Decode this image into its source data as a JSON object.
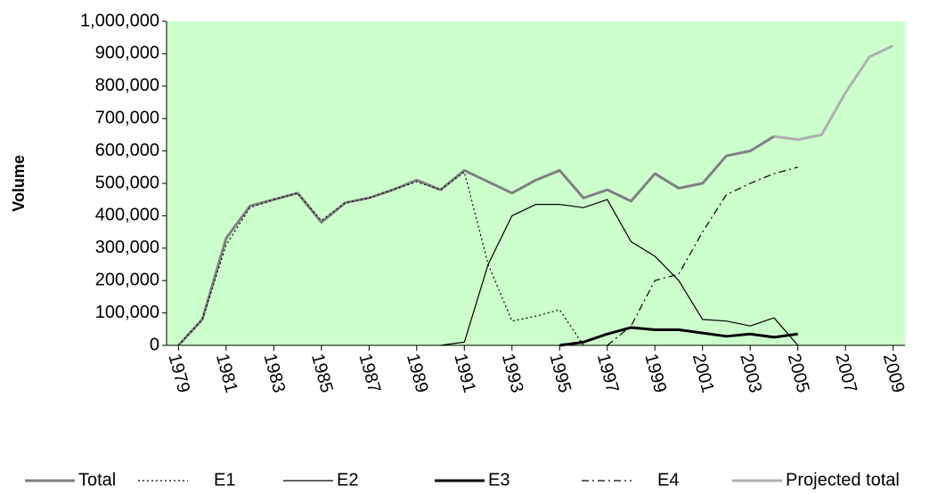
{
  "chart_data": {
    "type": "line",
    "ylabel": "Volume",
    "x": [
      1979,
      1980,
      1981,
      1982,
      1983,
      1984,
      1985,
      1986,
      1987,
      1988,
      1989,
      1990,
      1991,
      1992,
      1993,
      1994,
      1995,
      1996,
      1997,
      1998,
      1999,
      2000,
      2001,
      2002,
      2003,
      2004,
      2005,
      2006,
      2007,
      2008,
      2009
    ],
    "xlim": [
      1978.5,
      2009.5
    ],
    "xticks": [
      1979,
      1981,
      1983,
      1985,
      1987,
      1989,
      1991,
      1993,
      1995,
      1997,
      1999,
      2001,
      2003,
      2005,
      2007,
      2009
    ],
    "ylim": [
      0,
      1000000
    ],
    "yticks": [
      0,
      {
        "value": 100000,
        "label": "100,000"
      },
      {
        "value": 200000,
        "label": "200,000"
      },
      {
        "value": 300000,
        "label": "300,000"
      },
      {
        "value": 400000,
        "label": "400,000"
      },
      {
        "value": 500000,
        "label": "500,000"
      },
      {
        "value": 600000,
        "label": "600,000"
      },
      {
        "value": 700000,
        "label": "700,000"
      },
      {
        "value": 800000,
        "label": "800,000"
      },
      {
        "value": 900000,
        "label": "900,000"
      },
      {
        "value": 1000000,
        "label": "1,000,000"
      }
    ],
    "background": "#ccffcc",
    "legend": "bottom",
    "series": [
      {
        "name": "Total",
        "color": "#808080",
        "line_width": 3,
        "dash": "none",
        "values": [
          0,
          80000,
          330000,
          430000,
          450000,
          470000,
          380000,
          440000,
          455000,
          480000,
          510000,
          480000,
          540000,
          505000,
          470000,
          510000,
          540000,
          455000,
          480000,
          445000,
          530000,
          485000,
          500000,
          585000,
          600000,
          645000,
          null,
          null,
          null,
          null,
          null
        ]
      },
      {
        "name": "E1",
        "color": "#000000",
        "line_width": 1.2,
        "dash": "2,3",
        "values": [
          0,
          80000,
          310000,
          425000,
          450000,
          470000,
          385000,
          440000,
          455000,
          480000,
          505000,
          480000,
          535000,
          250000,
          75000,
          90000,
          110000,
          0,
          null,
          null,
          null,
          null,
          null,
          null,
          null,
          null,
          null,
          null,
          null,
          null,
          null
        ]
      },
      {
        "name": "E2",
        "color": "#000000",
        "line_width": 1.2,
        "dash": "none",
        "values": [
          null,
          null,
          null,
          null,
          null,
          null,
          null,
          null,
          null,
          null,
          null,
          0,
          10000,
          250000,
          400000,
          435000,
          435000,
          425000,
          450000,
          320000,
          275000,
          200000,
          80000,
          75000,
          60000,
          85000,
          0,
          null,
          null,
          null,
          null
        ]
      },
      {
        "name": "E3",
        "color": "#000000",
        "line_width": 3,
        "dash": "none",
        "values": [
          null,
          null,
          null,
          null,
          null,
          null,
          null,
          null,
          null,
          null,
          null,
          null,
          null,
          null,
          null,
          null,
          0,
          10000,
          35000,
          55000,
          48000,
          48000,
          38000,
          28000,
          35000,
          25000,
          35000,
          null,
          null,
          null,
          null
        ]
      },
      {
        "name": "E4",
        "color": "#000000",
        "line_width": 1.2,
        "dash": "8,4,2,4",
        "values": [
          null,
          null,
          null,
          null,
          null,
          null,
          null,
          null,
          null,
          null,
          null,
          null,
          null,
          null,
          null,
          null,
          null,
          null,
          0,
          60000,
          200000,
          220000,
          350000,
          465000,
          500000,
          530000,
          550000,
          null,
          null,
          null,
          null
        ]
      },
      {
        "name": "Projected total",
        "color": "#b0b0b0",
        "line_width": 3,
        "dash": "none",
        "values": [
          null,
          null,
          null,
          null,
          null,
          null,
          null,
          null,
          null,
          null,
          null,
          null,
          null,
          null,
          null,
          null,
          null,
          null,
          null,
          null,
          null,
          null,
          null,
          null,
          null,
          645000,
          635000,
          650000,
          780000,
          890000,
          925000
        ]
      }
    ]
  }
}
